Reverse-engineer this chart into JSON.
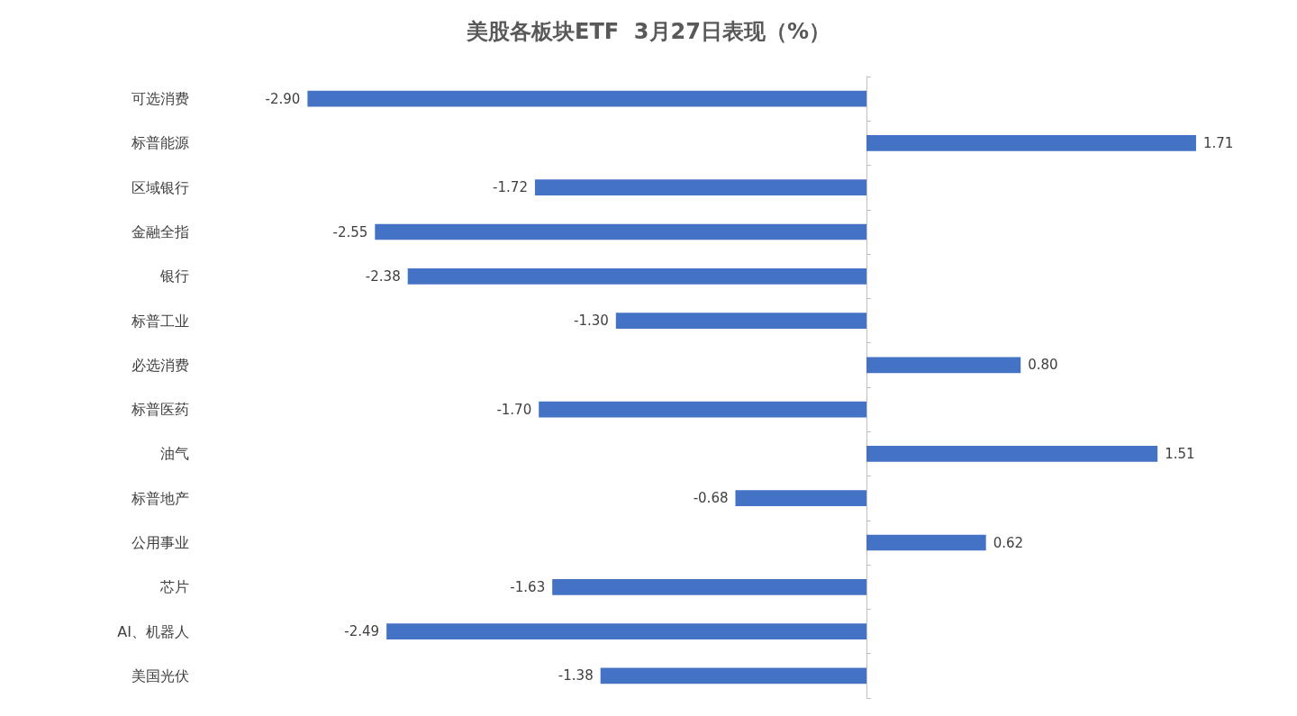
{
  "chart_data": {
    "type": "bar",
    "orientation": "horizontal",
    "title": "美股各板块ETF  3月27日表现（%）",
    "categories": [
      "可选消费",
      "标普能源",
      "区域银行",
      "金融全指",
      "银行",
      "标普工业",
      "必选消费",
      "标普医药",
      "油气",
      "标普地产",
      "公用事业",
      "芯片",
      "AI、机器人",
      "美国光伏"
    ],
    "values": [
      -2.9,
      1.71,
      -1.72,
      -2.55,
      -2.38,
      -1.3,
      0.8,
      -1.7,
      1.51,
      -0.68,
      0.62,
      -1.63,
      -2.49,
      -1.38
    ],
    "value_labels": [
      "-2.90",
      "1.71",
      "-1.72",
      "-2.55",
      "-2.38",
      "-1.30",
      "0.80",
      "-1.70",
      "1.51",
      "-0.68",
      "0.62",
      "-1.63",
      "-2.49",
      "-1.38"
    ],
    "color": "#4472c4",
    "grid": false,
    "tick_labels": "y"
  }
}
